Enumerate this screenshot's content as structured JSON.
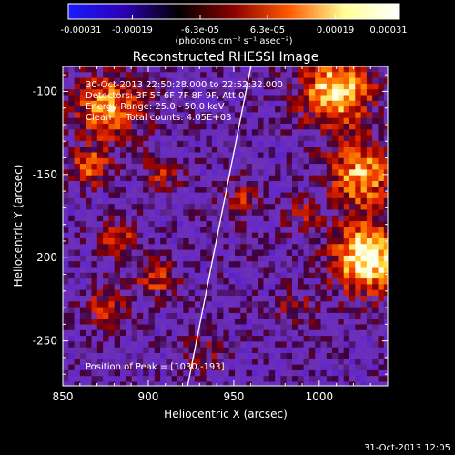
{
  "colorbar": {
    "tick_labels": [
      "-0.00031",
      "-0.00019",
      "-6.3e-05",
      "6.3e-05",
      "0.00019",
      "0.00031"
    ],
    "unit_label": "(photons cm⁻² s⁻¹ asec⁻²)",
    "stops": [
      "#1a1aff",
      "#2d00b4",
      "#000000",
      "#8c0000",
      "#ff5a00",
      "#ffff96",
      "#ffffff"
    ]
  },
  "chart_data": {
    "type": "heatmap",
    "title": "Reconstructed RHESSI Image",
    "xlabel": "Heliocentric X (arcsec)",
    "ylabel": "Heliocentric Y (arcsec)",
    "xlim": [
      850,
      1040
    ],
    "ylim": [
      -277,
      -85
    ],
    "x_ticks": [
      850,
      900,
      950,
      1000
    ],
    "y_ticks": [
      -100,
      -150,
      -200,
      -250
    ],
    "info_lines": [
      "30-Oct-2013 22:50:28.000 to 22:52:32.000",
      "Detectors: 3F 5F 6F 7F 8F 9F, Att 0",
      "Energy Range: 25.0 - 50.0 keV",
      "Clean     Total counts: 4.05E+03"
    ],
    "peak_label": "Position of Peak = [1030,-193]",
    "limb_points": [
      [
        923,
        -277
      ],
      [
        960,
        -85
      ]
    ],
    "bright_regions": [
      {
        "x": 1010,
        "y": -100,
        "value": 0.00028
      },
      {
        "x": 1028,
        "y": -200,
        "value": 0.00031
      },
      {
        "x": 1025,
        "y": -150,
        "value": 0.00022
      },
      {
        "x": 877,
        "y": -110,
        "value": 0.00021
      },
      {
        "x": 866,
        "y": -145,
        "value": 0.00017
      },
      {
        "x": 882,
        "y": -190,
        "value": 0.00016
      },
      {
        "x": 905,
        "y": -212,
        "value": 0.00015
      },
      {
        "x": 875,
        "y": -230,
        "value": 0.00013
      },
      {
        "x": 908,
        "y": -150,
        "value": 0.00012
      },
      {
        "x": 955,
        "y": -165,
        "value": 0.0001
      },
      {
        "x": 990,
        "y": -175,
        "value": 9e-05
      },
      {
        "x": 985,
        "y": -230,
        "value": 9e-05
      },
      {
        "x": 932,
        "y": -258,
        "value": 8e-05
      }
    ]
  },
  "footer": {
    "timestamp": "31-Oct-2013 12:05"
  }
}
